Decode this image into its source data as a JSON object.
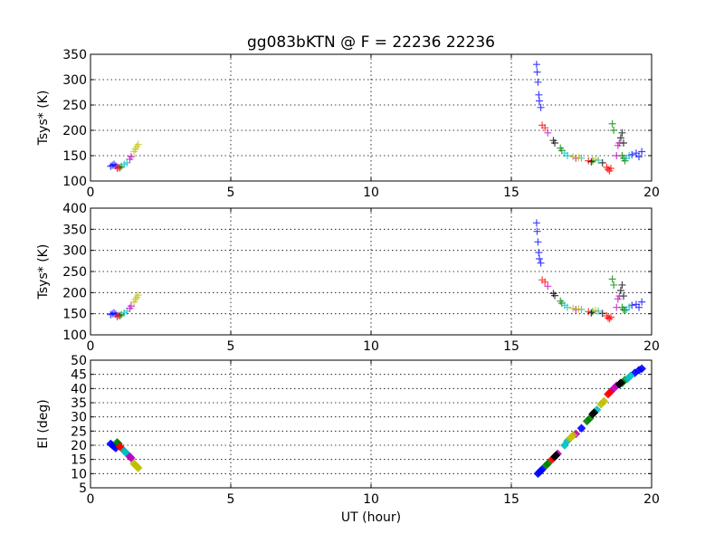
{
  "figure": {
    "title": "gg083bKTN @ F = 22236 22236",
    "xlabel": "UT (hour)"
  },
  "chart_data": [
    {
      "type": "scatter",
      "ylabel": "Tsys* (K)",
      "xlim": [
        0,
        20
      ],
      "ylim": [
        100,
        350
      ],
      "xticks": [
        0,
        5,
        10,
        15,
        20
      ],
      "yticks": [
        100,
        150,
        200,
        250,
        300,
        350
      ],
      "grid": true,
      "series": [
        {
          "color": "#0000ff",
          "marker": "plus",
          "points": [
            [
              0.72,
              129
            ],
            [
              0.78,
              131
            ],
            [
              0.84,
              133
            ],
            [
              0.9,
              130
            ],
            [
              15.9,
              330
            ],
            [
              15.92,
              315
            ],
            [
              15.95,
              295
            ],
            [
              15.98,
              270
            ],
            [
              16.0,
              258
            ],
            [
              16.05,
              245
            ],
            [
              19.3,
              152
            ],
            [
              19.45,
              155
            ],
            [
              19.55,
              148
            ],
            [
              19.65,
              158
            ]
          ]
        },
        {
          "color": "#008000",
          "marker": "plus",
          "points": [
            [
              1.05,
              126
            ],
            [
              1.1,
              129
            ],
            [
              16.75,
              165
            ],
            [
              16.8,
              160
            ],
            [
              17.9,
              140
            ],
            [
              18.6,
              213
            ],
            [
              18.65,
              200
            ],
            [
              18.95,
              150
            ],
            [
              19.0,
              145
            ],
            [
              19.05,
              140
            ]
          ]
        },
        {
          "color": "#ff0000",
          "marker": "plus",
          "points": [
            [
              0.95,
              125
            ],
            [
              1.0,
              127
            ],
            [
              16.1,
              210
            ],
            [
              16.2,
              205
            ],
            [
              17.75,
              140
            ],
            [
              18.4,
              127
            ],
            [
              18.45,
              123
            ],
            [
              18.5,
              120
            ],
            [
              18.55,
              125
            ]
          ]
        },
        {
          "color": "#00bfbf",
          "marker": "plus",
          "points": [
            [
              1.2,
              133
            ],
            [
              1.3,
              136
            ],
            [
              16.9,
              155
            ],
            [
              17.0,
              150
            ],
            [
              17.5,
              145
            ],
            [
              18.1,
              141
            ],
            [
              19.1,
              145
            ],
            [
              19.2,
              150
            ]
          ]
        },
        {
          "color": "#bf00bf",
          "marker": "plus",
          "points": [
            [
              1.4,
              143
            ],
            [
              1.45,
              148
            ],
            [
              16.3,
              195
            ],
            [
              17.3,
              145
            ],
            [
              18.8,
              170
            ],
            [
              18.85,
              175
            ],
            [
              18.75,
              150
            ]
          ]
        },
        {
          "color": "#bfbf00",
          "marker": "plus",
          "points": [
            [
              1.55,
              158
            ],
            [
              1.6,
              163
            ],
            [
              1.65,
              168
            ],
            [
              1.7,
              172
            ],
            [
              17.2,
              148
            ],
            [
              17.4,
              146
            ],
            [
              18.0,
              143
            ]
          ]
        },
        {
          "color": "#000000",
          "marker": "plus",
          "points": [
            [
              16.5,
              180
            ],
            [
              16.55,
              175
            ],
            [
              17.85,
              138
            ],
            [
              18.9,
              185
            ],
            [
              18.95,
              195
            ],
            [
              19.0,
              175
            ],
            [
              18.25,
              136
            ]
          ]
        }
      ]
    },
    {
      "type": "scatter",
      "ylabel": "Tsys* (K)",
      "xlim": [
        0,
        20
      ],
      "ylim": [
        100,
        400
      ],
      "xticks": [
        0,
        5,
        10,
        15,
        20
      ],
      "yticks": [
        100,
        150,
        200,
        250,
        300,
        350,
        400
      ],
      "grid": true,
      "series": [
        {
          "color": "#0000ff",
          "marker": "plus",
          "points": [
            [
              0.72,
              148
            ],
            [
              0.78,
              150
            ],
            [
              0.84,
              152
            ],
            [
              0.9,
              149
            ],
            [
              15.9,
              365
            ],
            [
              15.92,
              345
            ],
            [
              15.95,
              320
            ],
            [
              15.98,
              295
            ],
            [
              16.0,
              280
            ],
            [
              16.05,
              270
            ],
            [
              19.3,
              170
            ],
            [
              19.45,
              172
            ],
            [
              19.55,
              165
            ],
            [
              19.65,
              178
            ]
          ]
        },
        {
          "color": "#008000",
          "marker": "plus",
          "points": [
            [
              1.05,
              145
            ],
            [
              1.1,
              148
            ],
            [
              16.75,
              180
            ],
            [
              16.8,
              175
            ],
            [
              17.9,
              155
            ],
            [
              18.6,
              232
            ],
            [
              18.65,
              218
            ],
            [
              18.95,
              165
            ],
            [
              19.0,
              160
            ],
            [
              19.05,
              158
            ]
          ]
        },
        {
          "color": "#ff0000",
          "marker": "plus",
          "points": [
            [
              0.95,
              143
            ],
            [
              1.0,
              146
            ],
            [
              16.1,
              230
            ],
            [
              16.2,
              225
            ],
            [
              17.75,
              155
            ],
            [
              18.4,
              145
            ],
            [
              18.45,
              140
            ],
            [
              18.5,
              138
            ],
            [
              18.55,
              142
            ]
          ]
        },
        {
          "color": "#00bfbf",
          "marker": "plus",
          "points": [
            [
              1.2,
              152
            ],
            [
              1.3,
              156
            ],
            [
              16.9,
              170
            ],
            [
              17.0,
              165
            ],
            [
              17.5,
              160
            ],
            [
              18.1,
              156
            ],
            [
              19.1,
              160
            ],
            [
              19.2,
              166
            ]
          ]
        },
        {
          "color": "#bf00bf",
          "marker": "plus",
          "points": [
            [
              1.4,
              163
            ],
            [
              1.45,
              168
            ],
            [
              16.3,
              215
            ],
            [
              17.3,
              160
            ],
            [
              18.8,
              185
            ],
            [
              18.85,
              192
            ],
            [
              18.75,
              165
            ]
          ]
        },
        {
          "color": "#bfbf00",
          "marker": "plus",
          "points": [
            [
              1.55,
              178
            ],
            [
              1.6,
              184
            ],
            [
              1.65,
              189
            ],
            [
              1.7,
              194
            ],
            [
              17.2,
              163
            ],
            [
              17.4,
              161
            ],
            [
              18.0,
              158
            ]
          ]
        },
        {
          "color": "#000000",
          "marker": "plus",
          "points": [
            [
              16.5,
              198
            ],
            [
              16.55,
              193
            ],
            [
              17.85,
              152
            ],
            [
              18.9,
              205
            ],
            [
              18.95,
              218
            ],
            [
              19.0,
              192
            ],
            [
              18.25,
              151
            ]
          ]
        }
      ]
    },
    {
      "type": "scatter",
      "ylabel": "El (deg)",
      "xlim": [
        0,
        20
      ],
      "ylim": [
        5,
        50
      ],
      "xticks": [
        0,
        5,
        10,
        15,
        20
      ],
      "yticks": [
        5,
        10,
        15,
        20,
        25,
        30,
        35,
        40,
        45,
        50
      ],
      "grid": true,
      "series": [
        {
          "color": "#0000ff",
          "marker": "diamond",
          "points": [
            [
              0.72,
              20.5
            ],
            [
              0.78,
              20
            ],
            [
              0.84,
              19.5
            ],
            [
              0.9,
              19
            ],
            [
              15.95,
              10
            ],
            [
              16.0,
              10.5
            ],
            [
              16.05,
              11
            ],
            [
              16.1,
              11.5
            ],
            [
              17.5,
              26
            ],
            [
              19.4,
              45.5
            ],
            [
              19.55,
              46.5
            ],
            [
              19.65,
              47
            ]
          ]
        },
        {
          "color": "#008000",
          "marker": "diamond",
          "points": [
            [
              0.95,
              21
            ],
            [
              1.0,
              20.5
            ],
            [
              16.25,
              13
            ],
            [
              16.3,
              13.5
            ],
            [
              17.7,
              28.5
            ],
            [
              17.8,
              29.5
            ],
            [
              18.95,
              42
            ],
            [
              19.05,
              43
            ]
          ]
        },
        {
          "color": "#ff0000",
          "marker": "diamond",
          "points": [
            [
              1.05,
              19.5
            ],
            [
              1.1,
              19
            ],
            [
              16.45,
              15
            ],
            [
              16.5,
              15.5
            ],
            [
              18.45,
              38
            ],
            [
              18.5,
              38.5
            ],
            [
              18.55,
              39
            ]
          ]
        },
        {
          "color": "#00bfbf",
          "marker": "diamond",
          "points": [
            [
              1.2,
              18
            ],
            [
              1.25,
              17.5
            ],
            [
              1.3,
              17
            ],
            [
              16.9,
              20
            ],
            [
              17.0,
              21.5
            ],
            [
              18.05,
              32.5
            ],
            [
              19.15,
              43.5
            ],
            [
              19.25,
              44.5
            ]
          ]
        },
        {
          "color": "#bf00bf",
          "marker": "diamond",
          "points": [
            [
              1.4,
              16
            ],
            [
              1.45,
              15.5
            ],
            [
              16.65,
              17
            ],
            [
              17.3,
              24
            ],
            [
              18.65,
              40
            ],
            [
              18.75,
              41
            ]
          ]
        },
        {
          "color": "#bfbf00",
          "marker": "diamond",
          "points": [
            [
              1.55,
              13.5
            ],
            [
              1.6,
              13
            ],
            [
              1.65,
              12.5
            ],
            [
              1.7,
              12
            ],
            [
              17.1,
              22.5
            ],
            [
              17.2,
              23.5
            ],
            [
              18.2,
              34.5
            ],
            [
              18.3,
              35.5
            ]
          ]
        },
        {
          "color": "#000000",
          "marker": "diamond",
          "points": [
            [
              16.55,
              16
            ],
            [
              16.6,
              16.5
            ],
            [
              17.9,
              31
            ],
            [
              17.95,
              31.5
            ],
            [
              18.85,
              41.5
            ],
            [
              18.9,
              42
            ]
          ]
        }
      ]
    }
  ]
}
